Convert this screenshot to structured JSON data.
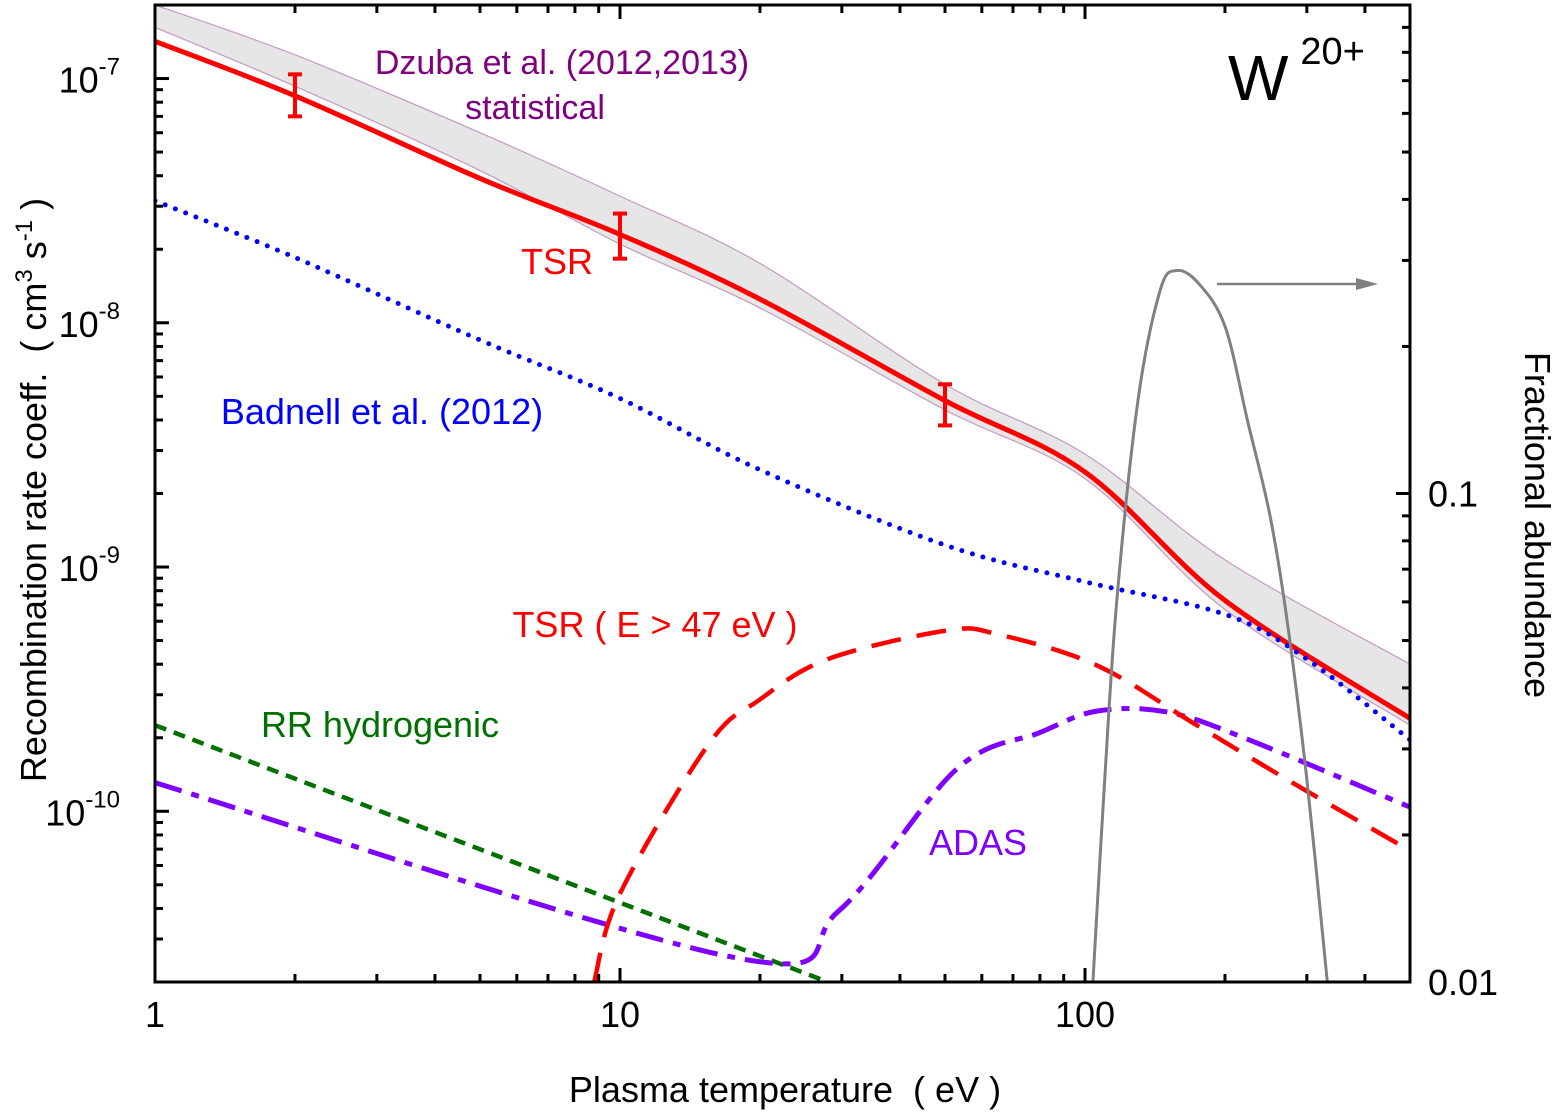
{
  "chart_data": {
    "type": "line",
    "title": "",
    "ion_label": {
      "base": "W",
      "sup": "20+"
    },
    "xlabel": "Plasma temperature  ( eV )",
    "ylabel": {
      "main": "Recombination rate coeff.  ( cm",
      "sup1": "3",
      "mid": " s",
      "sup2": "-1",
      "end": " )"
    },
    "y2label": "Fractional abundance",
    "xscale": "log",
    "yscale": "log",
    "y2scale": "log",
    "xlim": [
      1,
      500
    ],
    "ylim": [
      2e-11,
      2e-07
    ],
    "y2lim": [
      0.01,
      1
    ],
    "grid": false,
    "x_ticks": [
      {
        "value": 1,
        "label": "1"
      },
      {
        "value": 10,
        "label": "10"
      },
      {
        "value": 100,
        "label": "100"
      }
    ],
    "y_ticks": [
      {
        "value": 1e-10,
        "base": "10",
        "exp": "-10"
      },
      {
        "value": 1e-09,
        "base": "10",
        "exp": "-9"
      },
      {
        "value": 1e-08,
        "base": "10",
        "exp": "-8"
      },
      {
        "value": 1e-07,
        "base": "10",
        "exp": "-7"
      }
    ],
    "y2_ticks": [
      {
        "value": 0.01,
        "label": "0.01"
      },
      {
        "value": 0.1,
        "label": "0.1"
      }
    ],
    "colors": {
      "tsr": "#ff0000",
      "badnell": "#0000ff",
      "rr": "#007000",
      "adas": "#8000ff",
      "dzuba_text": "#800080",
      "dzuba_band": "#e6e6e6",
      "dzuba_edge": "#c49ac4",
      "abundance": "#808080"
    },
    "annotations": {
      "dzuba_line1": "Dzuba et al. (2012,2013)",
      "dzuba_line2": "statistical",
      "tsr": "TSR",
      "badnell": "Badnell et al. (2012)",
      "tsr_partial": "TSR ( E > 47 eV )",
      "rr": "RR hydrogenic",
      "adas": "ADAS"
    },
    "dzuba_band": {
      "upper": [
        [
          1,
          2e-07
        ],
        [
          2,
          1.25e-07
        ],
        [
          5,
          6e-08
        ],
        [
          10,
          3.3e-08
        ],
        [
          20,
          1.75e-08
        ],
        [
          50,
          5.6e-09
        ],
        [
          100,
          2.9e-09
        ],
        [
          200,
          1.07e-09
        ],
        [
          500,
          4e-10
        ]
      ],
      "lower": [
        [
          1,
          1.62e-07
        ],
        [
          2,
          9.3e-08
        ],
        [
          5,
          4.2e-08
        ],
        [
          10,
          2.1e-08
        ],
        [
          20,
          1.15e-08
        ],
        [
          50,
          4.4e-09
        ],
        [
          100,
          2.3e-09
        ],
        [
          200,
          6.7e-10
        ],
        [
          500,
          2.25e-10
        ]
      ]
    },
    "series": [
      {
        "key": "tsr",
        "style": "solid",
        "points": [
          [
            1,
            1.42e-07
          ],
          [
            2,
            8.5e-08
          ],
          [
            5,
            3.9e-08
          ],
          [
            10,
            2.3e-08
          ],
          [
            20,
            1.25e-08
          ],
          [
            50,
            4.8e-09
          ],
          [
            100,
            2.45e-09
          ],
          [
            200,
            7.3e-10
          ],
          [
            500,
            2.4e-10
          ]
        ]
      },
      {
        "key": "badnell",
        "style": "dotted",
        "points": [
          [
            1,
            3.16e-08
          ],
          [
            2,
            1.85e-08
          ],
          [
            5,
            8.5e-09
          ],
          [
            10,
            4.9e-09
          ],
          [
            20,
            2.5e-09
          ],
          [
            50,
            1.23e-09
          ],
          [
            100,
            8.7e-10
          ],
          [
            200,
            6.4e-10
          ],
          [
            300,
            4.2e-10
          ],
          [
            500,
            1.96e-10
          ]
        ]
      },
      {
        "key": "rr",
        "style": "dashed",
        "points": [
          [
            1,
            2.25e-10
          ],
          [
            28,
            2e-11
          ]
        ]
      },
      {
        "key": "adas",
        "style": "dashdot",
        "points": [
          [
            1,
            1.31e-10
          ],
          [
            17.6,
            2.52e-11
          ],
          [
            29.5,
            3.9e-11
          ],
          [
            53,
            1.49e-10
          ],
          [
            80,
            2.1e-10
          ],
          [
            106,
            2.57e-10
          ],
          [
            150,
            2.55e-10
          ],
          [
            224,
            1.97e-10
          ],
          [
            500,
            1.04e-10
          ]
        ]
      },
      {
        "key": "tsr_partial",
        "style": "longdash",
        "points": [
          [
            8.8,
            2e-11
          ],
          [
            10,
            4.6e-11
          ],
          [
            15.5,
            1.88e-10
          ],
          [
            19.9,
            2.85e-10
          ],
          [
            28,
            4.2e-10
          ],
          [
            50.6,
            5.5e-10
          ],
          [
            65,
            5.3e-10
          ],
          [
            106,
            3.96e-10
          ],
          [
            174,
            2.25e-10
          ],
          [
            285,
            1.28e-10
          ],
          [
            500,
            6.9e-11
          ]
        ]
      }
    ],
    "errorbars": [
      {
        "x": 2,
        "y": 8.5e-08,
        "low": 7e-08,
        "high": 1.04e-07
      },
      {
        "x": 10,
        "y": 2.3e-08,
        "low": 1.83e-08,
        "high": 2.8e-08
      },
      {
        "x": 50,
        "y": 4.8e-09,
        "low": 3.8e-09,
        "high": 5.6e-09
      }
    ],
    "abundance": {
      "axis": "right",
      "points": [
        [
          104,
          0.01
        ],
        [
          110,
          0.025
        ],
        [
          117,
          0.06
        ],
        [
          130,
          0.155
        ],
        [
          145,
          0.26
        ],
        [
          157,
          0.286
        ],
        [
          175,
          0.27
        ],
        [
          200,
          0.22
        ],
        [
          224,
          0.14
        ],
        [
          250,
          0.09
        ],
        [
          272,
          0.055
        ],
        [
          300,
          0.026
        ],
        [
          332,
          0.01
        ]
      ]
    },
    "abundance_arrow": {
      "direction": "right"
    }
  }
}
